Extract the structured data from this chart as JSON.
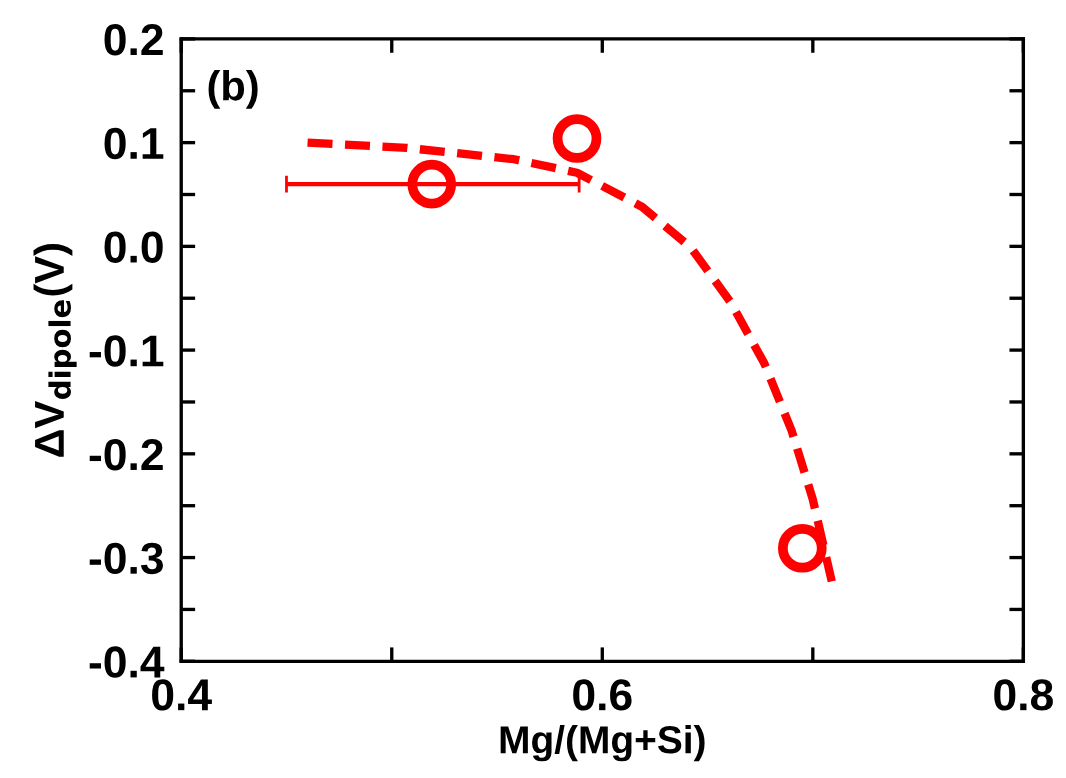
{
  "chart_data": {
    "type": "scatter",
    "xlabel": "Mg/(Mg+Si)",
    "ylabel": "ΔV$_{dipole}$(V)",
    "annotations": [
      "(b)"
    ],
    "xlim": [
      0.4,
      0.8
    ],
    "ylim": [
      -0.4,
      0.2
    ],
    "xticks": [
      0.4,
      {
        "value": 0.5,
        "label": null
      },
      0.6,
      {
        "value": 0.7,
        "label": null
      },
      0.8
    ],
    "yticks": [
      -0.4,
      {
        "value": -0.35,
        "label": null
      },
      -0.3,
      {
        "value": -0.25,
        "label": null
      },
      -0.2,
      {
        "value": -0.15,
        "label": null
      },
      -0.1,
      {
        "value": -0.05,
        "label": null
      },
      {
        "value": 0.0,
        "label": "0.0"
      },
      {
        "value": 0.05,
        "label": null
      },
      0.1,
      {
        "value": 0.15,
        "label": null
      },
      0.2
    ],
    "grid": false,
    "legend": false,
    "series": [
      {
        "color": "#ff0000",
        "marker": "circle",
        "x": [
          0.519,
          0.588,
          0.695
        ],
        "values": [
          0.06,
          0.104,
          -0.291
        ],
        "xerrors": [
          [
            0.45,
            0.589
          ],
          null,
          null
        ]
      },
      {
        "type": "line",
        "color": "#ff0000",
        "line_style": "dashed",
        "marker": "none",
        "x": [
          0.46,
          0.507,
          0.558,
          0.588,
          0.619,
          0.642,
          0.661,
          0.677,
          0.69,
          0.7,
          0.709
        ],
        "values": [
          0.1,
          0.095,
          0.084,
          0.071,
          0.038,
          -0.001,
          -0.054,
          -0.113,
          -0.178,
          -0.244,
          -0.323
        ]
      }
    ]
  }
}
